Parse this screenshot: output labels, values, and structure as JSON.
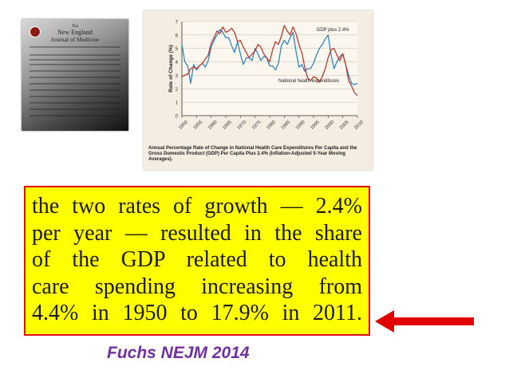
{
  "cover": {
    "subtitle": "The",
    "title_line1": "New England",
    "title_line2": "Journal of Medicine"
  },
  "chart_data": {
    "type": "line",
    "title": "",
    "ylabel": "Rate of Change (%)",
    "xlabel": "",
    "ylim": [
      0,
      7
    ],
    "xlim": [
      1950,
      2010
    ],
    "yticks": [
      "0",
      "1",
      "2",
      "3",
      "4",
      "5",
      "6",
      "7"
    ],
    "xticks": [
      "1950",
      "1955",
      "1960",
      "1965",
      "1970",
      "1975",
      "1980",
      "1985",
      "1990",
      "1995",
      "2000",
      "2005",
      "2010"
    ],
    "grid": true,
    "series": [
      {
        "name": "GDP plus 2.4%",
        "color": "#2e86c1",
        "x": [
          1950,
          1951,
          1952,
          1953,
          1954,
          1955,
          1956,
          1957,
          1958,
          1959,
          1960,
          1961,
          1962,
          1963,
          1964,
          1965,
          1966,
          1967,
          1968,
          1969,
          1970,
          1971,
          1972,
          1973,
          1974,
          1975,
          1976,
          1977,
          1978,
          1979,
          1980,
          1981,
          1982,
          1983,
          1984,
          1985,
          1986,
          1987,
          1988,
          1989,
          1990,
          1991,
          1992,
          1993,
          1994,
          1995,
          1996,
          1997,
          1998,
          1999,
          2000,
          2001,
          2002,
          2003,
          2004,
          2005,
          2006,
          2007,
          2008,
          2009,
          2010
        ],
        "values": [
          5.3,
          4.0,
          3.7,
          2.4,
          3.8,
          3.4,
          3.7,
          3.9,
          3.6,
          4.1,
          5.1,
          5.6,
          6.0,
          6.4,
          6.2,
          5.8,
          5.8,
          5.2,
          4.7,
          5.5,
          4.6,
          3.8,
          4.3,
          4.3,
          4.1,
          5.0,
          4.6,
          4.1,
          4.4,
          4.3,
          3.7,
          3.7,
          3.4,
          3.9,
          5.2,
          5.6,
          5.3,
          5.8,
          6.2,
          4.8,
          3.6,
          3.8,
          3.3,
          3.5,
          3.5,
          3.9,
          4.5,
          5.0,
          5.3,
          5.7,
          6.0,
          4.5,
          3.5,
          4.0,
          4.4,
          4.6,
          3.8,
          3.0,
          2.4,
          2.3,
          2.4
        ]
      },
      {
        "name": "National health expenditures",
        "color": "#c0392b",
        "x": [
          1950,
          1951,
          1952,
          1953,
          1954,
          1955,
          1956,
          1957,
          1958,
          1959,
          1960,
          1961,
          1962,
          1963,
          1964,
          1965,
          1966,
          1967,
          1968,
          1969,
          1970,
          1971,
          1972,
          1973,
          1974,
          1975,
          1976,
          1977,
          1978,
          1979,
          1980,
          1981,
          1982,
          1983,
          1984,
          1985,
          1986,
          1987,
          1988,
          1989,
          1990,
          1991,
          1992,
          1993,
          1994,
          1995,
          1996,
          1997,
          1998,
          1999,
          2000,
          2001,
          2002,
          2003,
          2004,
          2005,
          2006,
          2007,
          2008,
          2009,
          2010
        ],
        "values": [
          2.9,
          3.0,
          3.1,
          3.5,
          3.6,
          3.5,
          3.7,
          3.9,
          4.2,
          4.5,
          5.4,
          5.8,
          6.3,
          6.1,
          6.6,
          6.2,
          6.3,
          6.5,
          6.2,
          5.5,
          5.6,
          5.1,
          4.7,
          4.3,
          4.6,
          4.8,
          5.3,
          5.1,
          4.6,
          4.3,
          4.0,
          4.9,
          5.5,
          5.3,
          5.9,
          6.7,
          6.3,
          6.0,
          6.6,
          6.1,
          5.3,
          4.7,
          3.6,
          2.8,
          2.6,
          2.9,
          2.8,
          2.5,
          2.9,
          3.5,
          4.3,
          4.9,
          5.0,
          4.5,
          4.1,
          4.6,
          3.8,
          2.6,
          2.2,
          1.7,
          1.5
        ]
      }
    ],
    "caption": "Annual Percentage Rate of Change in National Health Care Expenditures Per Capita and the Gross Domestic Product (GDP) Per Capita Plus 2.4% (Inflation-Adjusted 5-Year Moving Averages)."
  },
  "quote": {
    "line1": "the two rates of growth — 2.4%",
    "line2": "per year — resulted in the share",
    "line3": "of the GDP related to health",
    "line4": "care spending increasing from",
    "line5": "4.4% in 1950 to 17.9% in 2011."
  },
  "citation": "Fuchs NEJM 2014",
  "colors": {
    "highlight": "#ffff00",
    "box_border": "#dd1111",
    "arrow": "#e00000",
    "citation": "#7030a0"
  }
}
